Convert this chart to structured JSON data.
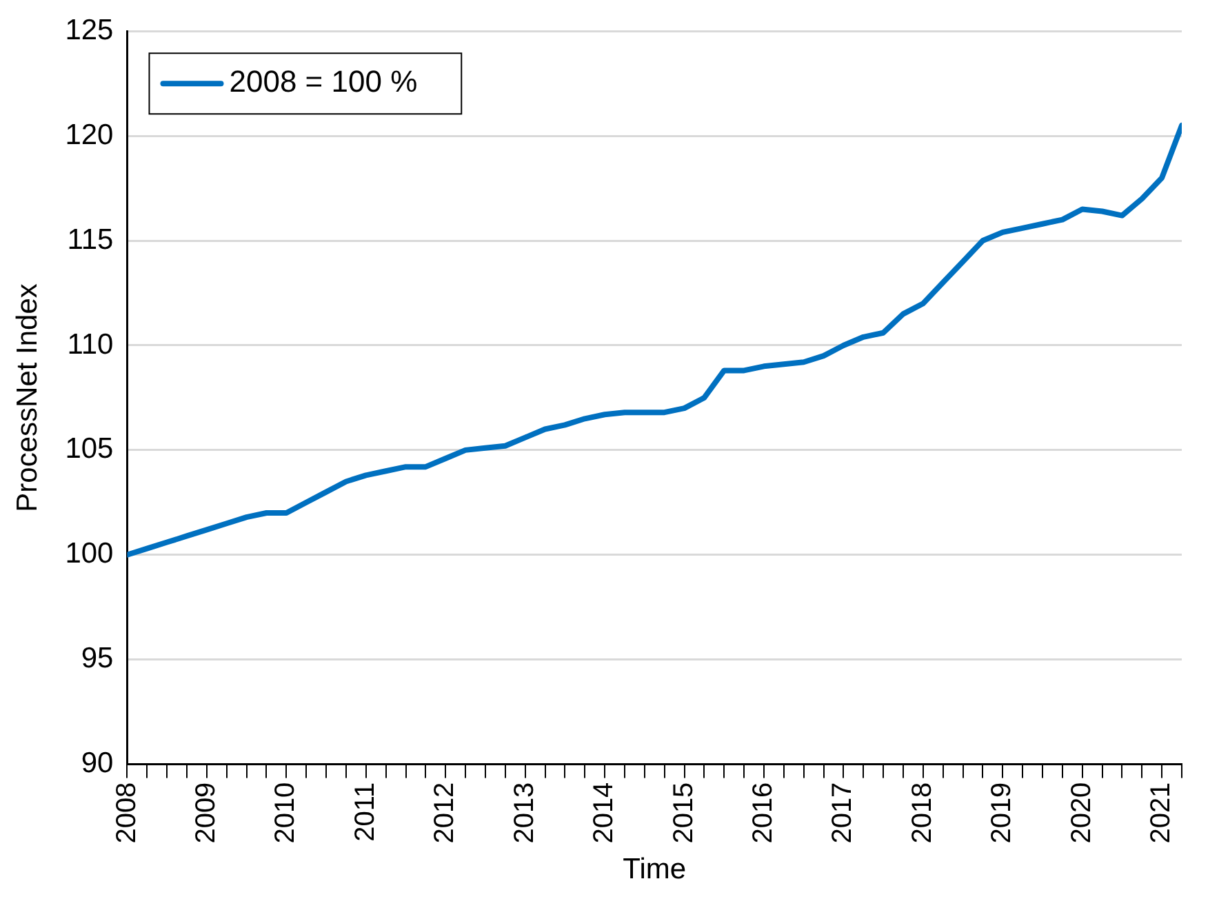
{
  "chart_data": {
    "type": "line",
    "xlabel": "Time",
    "ylabel": "ProcessNet Index",
    "x": [
      2008,
      2008.25,
      2008.5,
      2008.75,
      2009,
      2009.25,
      2009.5,
      2009.75,
      2010,
      2010.25,
      2010.5,
      2010.75,
      2011,
      2011.25,
      2011.5,
      2011.75,
      2012,
      2012.25,
      2012.5,
      2012.75,
      2013,
      2013.25,
      2013.5,
      2013.75,
      2014,
      2014.25,
      2014.5,
      2014.75,
      2015,
      2015.25,
      2015.5,
      2015.75,
      2016,
      2016.25,
      2016.5,
      2016.75,
      2017,
      2017.25,
      2017.5,
      2017.75,
      2018,
      2018.25,
      2018.5,
      2018.75,
      2019,
      2019.25,
      2019.5,
      2019.75,
      2020,
      2020.25,
      2020.5,
      2020.75,
      2021,
      2021.25
    ],
    "series": [
      {
        "name": "2008 = 100 %",
        "color": "#0070c0",
        "values": [
          100,
          100.3,
          100.6,
          100.9,
          101.2,
          101.5,
          101.8,
          102,
          102,
          102.5,
          103,
          103.5,
          103.8,
          104,
          104.2,
          104.2,
          104.6,
          105,
          105.1,
          105.2,
          105.6,
          106,
          106.2,
          106.5,
          106.7,
          106.8,
          106.8,
          106.8,
          107,
          107.5,
          108.8,
          108.8,
          109,
          109.1,
          109.2,
          109.5,
          110,
          110.4,
          110.6,
          111.5,
          112,
          113,
          114,
          115,
          115.4,
          115.6,
          115.8,
          116,
          116.5,
          116.4,
          116.2,
          117,
          118,
          120.5
        ]
      }
    ],
    "xlim": [
      2008,
      2021.25
    ],
    "xticks": [
      2008,
      {
        "value": 2008.25,
        "label": null
      },
      {
        "value": 2008.5,
        "label": null
      },
      {
        "value": 2008.75,
        "label": null
      },
      2009,
      {
        "value": 2009.25,
        "label": null
      },
      {
        "value": 2009.5,
        "label": null
      },
      {
        "value": 2009.75,
        "label": null
      },
      2010,
      {
        "value": 2010.25,
        "label": null
      },
      {
        "value": 2010.5,
        "label": null
      },
      {
        "value": 2010.75,
        "label": null
      },
      2011,
      {
        "value": 2011.25,
        "label": null
      },
      {
        "value": 2011.5,
        "label": null
      },
      {
        "value": 2011.75,
        "label": null
      },
      2012,
      {
        "value": 2012.25,
        "label": null
      },
      {
        "value": 2012.5,
        "label": null
      },
      {
        "value": 2012.75,
        "label": null
      },
      2013,
      {
        "value": 2013.25,
        "label": null
      },
      {
        "value": 2013.5,
        "label": null
      },
      {
        "value": 2013.75,
        "label": null
      },
      2014,
      {
        "value": 2014.25,
        "label": null
      },
      {
        "value": 2014.5,
        "label": null
      },
      {
        "value": 2014.75,
        "label": null
      },
      2015,
      {
        "value": 2015.25,
        "label": null
      },
      {
        "value": 2015.5,
        "label": null
      },
      {
        "value": 2015.75,
        "label": null
      },
      2016,
      {
        "value": 2016.25,
        "label": null
      },
      {
        "value": 2016.5,
        "label": null
      },
      {
        "value": 2016.75,
        "label": null
      },
      2017,
      {
        "value": 2017.25,
        "label": null
      },
      {
        "value": 2017.5,
        "label": null
      },
      {
        "value": 2017.75,
        "label": null
      },
      2018,
      {
        "value": 2018.25,
        "label": null
      },
      {
        "value": 2018.5,
        "label": null
      },
      {
        "value": 2018.75,
        "label": null
      },
      2019,
      {
        "value": 2019.25,
        "label": null
      },
      {
        "value": 2019.5,
        "label": null
      },
      {
        "value": 2019.75,
        "label": null
      },
      2020,
      {
        "value": 2020.25,
        "label": null
      },
      {
        "value": 2020.5,
        "label": null
      },
      {
        "value": 2020.75,
        "label": null
      },
      2021,
      {
        "value": 2021.25,
        "label": null
      }
    ],
    "ylim": [
      90,
      125
    ],
    "yticks": [
      90,
      95,
      100,
      105,
      110,
      115,
      120,
      125
    ],
    "grid": "y",
    "legend": "top left",
    "marker": "none",
    "line_style": "solid"
  }
}
